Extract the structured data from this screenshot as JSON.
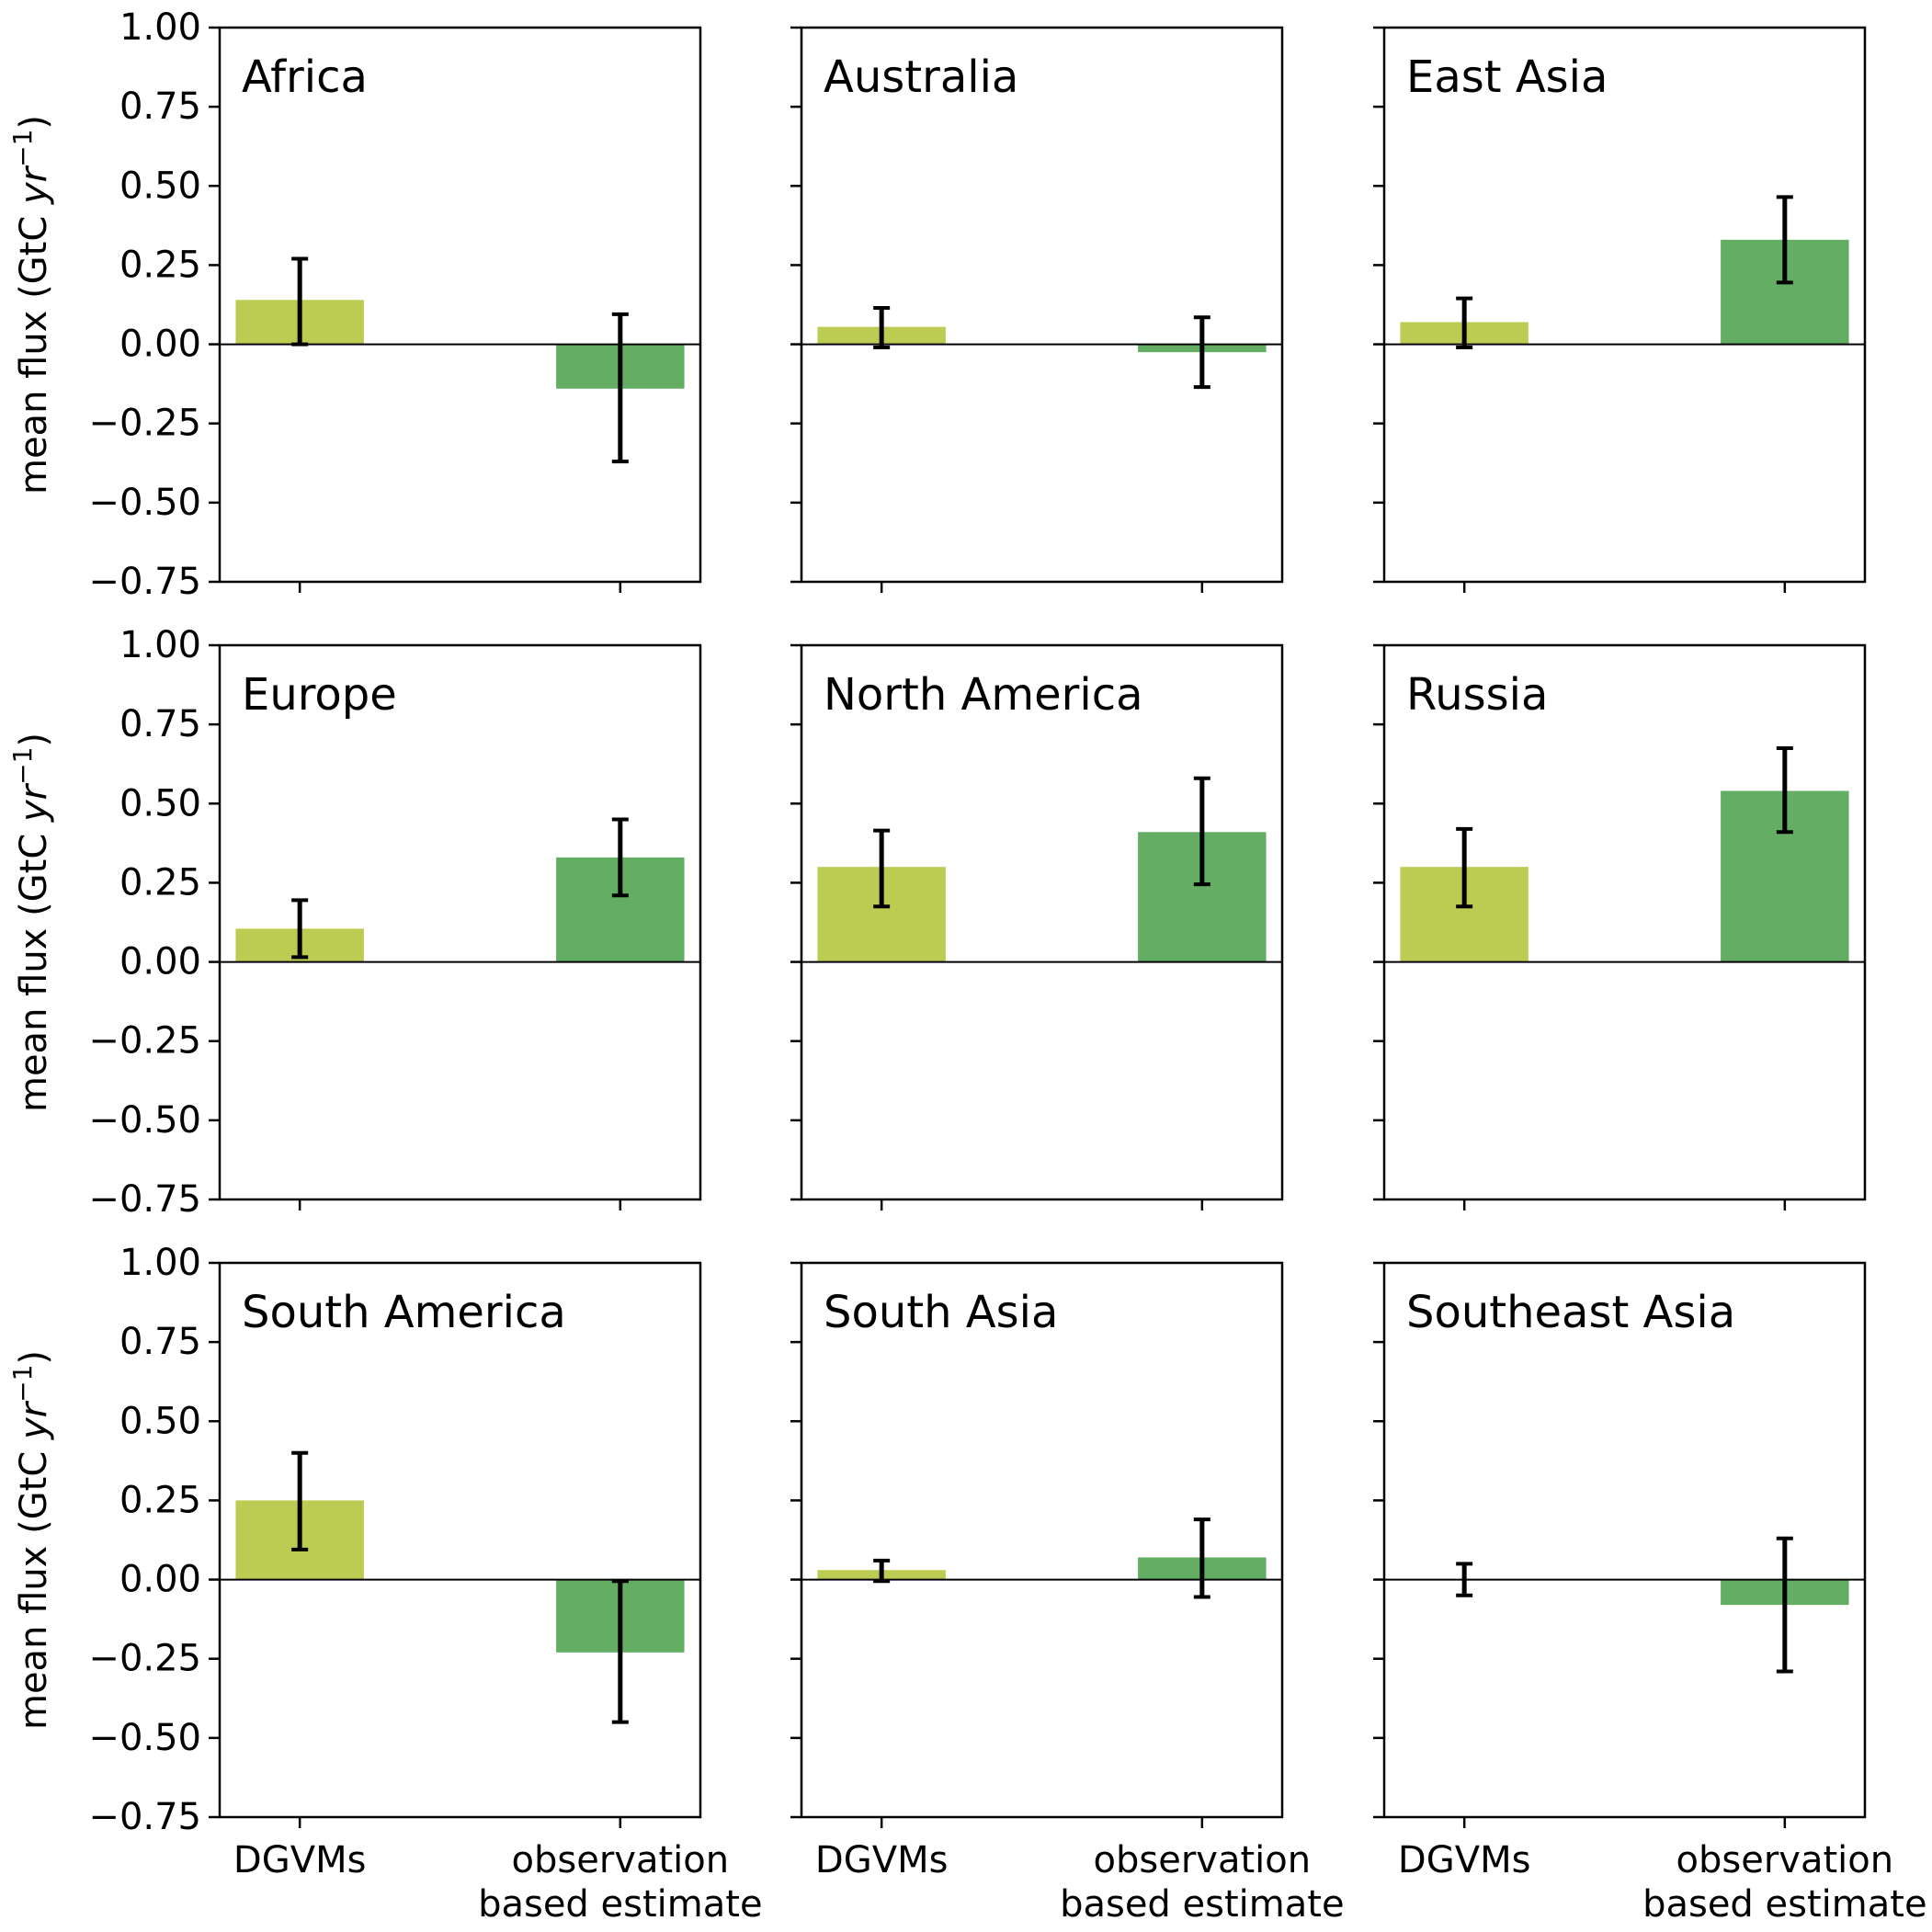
{
  "chart_data": {
    "type": "bar",
    "layout": "3x3 grid of panels, shared y axis per row, shared x axis per column",
    "ylabel": "mean flux (GtC yr⁻¹)",
    "ylabel_parts": {
      "prefix": "mean flux (GtC ",
      "unit_italic": "yr",
      "exponent": "−1",
      "suffix": ")"
    },
    "ylim": [
      -0.75,
      1.0
    ],
    "yticks": [
      -0.75,
      -0.5,
      -0.25,
      0.0,
      0.25,
      0.5,
      0.75,
      1.0
    ],
    "ytick_labels": [
      "−0.75",
      "−0.50",
      "−0.25",
      "0.00",
      "0.25",
      "0.50",
      "0.75",
      "1.00"
    ],
    "categories": [
      "DGVMs",
      "observation based estimate"
    ],
    "category_labels": [
      [
        "DGVMs"
      ],
      [
        "observation",
        "based estimate"
      ]
    ],
    "colors": {
      "DGVMs": "#bccb52",
      "observation based estimate": "#63ae62",
      "error_bar": "#000000",
      "zero_line": "#000000"
    },
    "grid": false,
    "panels": [
      {
        "title": "Africa",
        "values": [
          0.14,
          -0.14
        ],
        "errors": [
          [
            0.0,
            0.27
          ],
          [
            -0.37,
            0.095
          ]
        ]
      },
      {
        "title": "Australia",
        "values": [
          0.055,
          -0.025
        ],
        "errors": [
          [
            -0.01,
            0.115
          ],
          [
            -0.135,
            0.085
          ]
        ]
      },
      {
        "title": "East Asia",
        "values": [
          0.07,
          0.33
        ],
        "errors": [
          [
            -0.01,
            0.145
          ],
          [
            0.195,
            0.465
          ]
        ]
      },
      {
        "title": "Europe",
        "values": [
          0.105,
          0.33
        ],
        "errors": [
          [
            0.015,
            0.195
          ],
          [
            0.21,
            0.45
          ]
        ]
      },
      {
        "title": "North America",
        "values": [
          0.3,
          0.41
        ],
        "errors": [
          [
            0.175,
            0.415
          ],
          [
            0.245,
            0.58
          ]
        ]
      },
      {
        "title": "Russia",
        "values": [
          0.3,
          0.54
        ],
        "errors": [
          [
            0.175,
            0.42
          ],
          [
            0.41,
            0.675
          ]
        ]
      },
      {
        "title": "South America",
        "values": [
          0.25,
          -0.23
        ],
        "errors": [
          [
            0.095,
            0.4
          ],
          [
            -0.45,
            -0.005
          ]
        ]
      },
      {
        "title": "South Asia",
        "values": [
          0.03,
          0.07
        ],
        "errors": [
          [
            -0.005,
            0.06
          ],
          [
            -0.055,
            0.19
          ]
        ]
      },
      {
        "title": "Southeast Asia",
        "values": [
          0.0,
          -0.08
        ],
        "errors": [
          [
            -0.05,
            0.05
          ],
          [
            -0.29,
            0.13
          ]
        ]
      }
    ]
  }
}
